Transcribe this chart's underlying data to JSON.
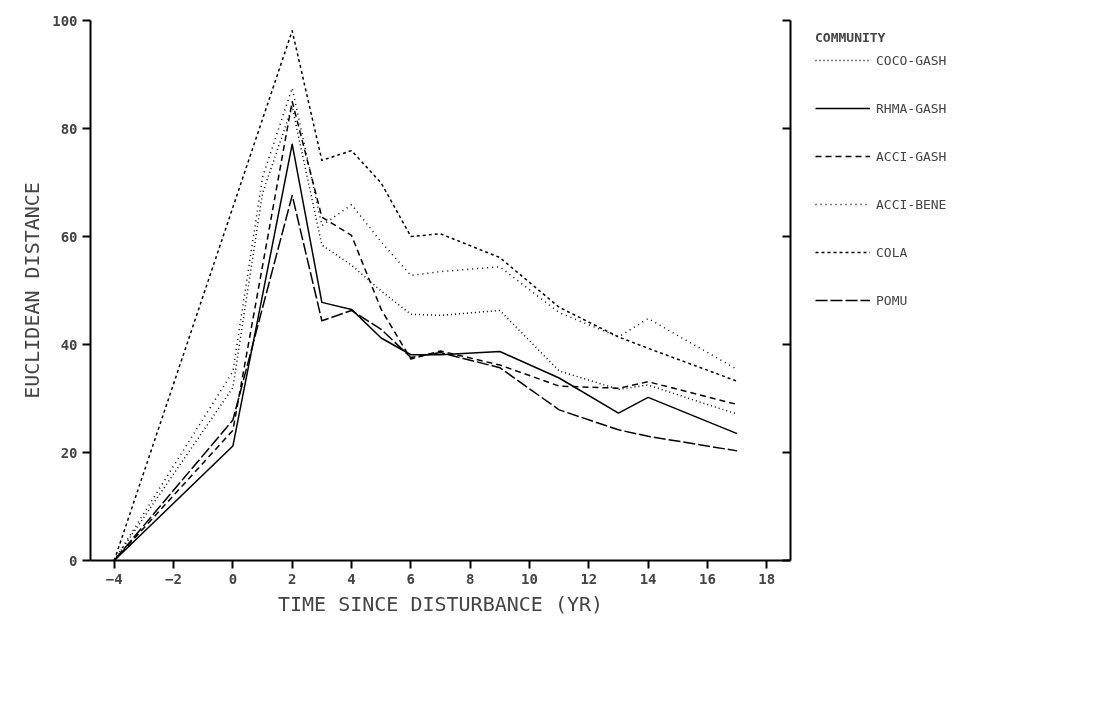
{
  "chart_data": {
    "type": "line",
    "xlabel": "TIME SINCE DISTURBANCE (YR)",
    "ylabel": "EUCLIDEAN DISTANCE",
    "legend_title": "COMMUNITY",
    "xlim": [
      -4.8,
      18.8
    ],
    "ylim": [
      0,
      100
    ],
    "xticks": [
      -4,
      -2,
      0,
      2,
      4,
      6,
      8,
      10,
      12,
      14,
      16,
      18
    ],
    "yticks": [
      0,
      20,
      40,
      60,
      80,
      100
    ],
    "grid": false,
    "legend": "right",
    "marker": "none",
    "series": [
      {
        "name": "COCO-GASH",
        "color": "#000000",
        "line_style": "dotted",
        "x": [
          -4,
          0,
          1,
          2,
          3,
          4,
          5,
          6,
          7,
          9,
          11,
          13,
          14,
          17
        ],
        "values": [
          0,
          32,
          68,
          84,
          58.4,
          54.7,
          49.9,
          45.6,
          45.4,
          46.3,
          35.1,
          31.7,
          32.5,
          27.1
        ]
      },
      {
        "name": "RHMA-GASH",
        "color": "#000000",
        "line_style": "solid",
        "x": [
          -4,
          0,
          2,
          3,
          4,
          5,
          6,
          7,
          9,
          11,
          13,
          14,
          17
        ],
        "values": [
          0,
          21.2,
          77.1,
          47.8,
          46.5,
          41.2,
          38.1,
          38.1,
          38.7,
          33.8,
          27.3,
          30.2,
          23.5
        ]
      },
      {
        "name": "ACCI-GASH",
        "color": "#000000",
        "line_style": "dashed",
        "x": [
          -4,
          0,
          2,
          3,
          4,
          5,
          6,
          7,
          9,
          11,
          13,
          14,
          17
        ],
        "values": [
          0,
          24.1,
          85,
          63.6,
          60.2,
          46.5,
          37.3,
          38.8,
          36.2,
          32.3,
          31.9,
          33.1,
          28.9
        ]
      },
      {
        "name": "ACCI-BENE",
        "color": "#000000",
        "line_style": "dotted",
        "x": [
          -4,
          0,
          1,
          2,
          3,
          4,
          5,
          6,
          7,
          9,
          11,
          13,
          14,
          17
        ],
        "values": [
          0,
          35,
          71,
          87.5,
          62,
          65.9,
          59,
          52.8,
          53.5,
          54.4,
          45.9,
          41.4,
          44.8,
          35.4
        ]
      },
      {
        "name": "COLA",
        "color": "#000000",
        "line_style": "dashed",
        "x": [
          -4,
          2,
          3,
          4,
          5,
          6,
          7,
          9,
          11,
          13,
          14,
          17
        ],
        "values": [
          0,
          98.1,
          74.1,
          75.9,
          69.9,
          60,
          60.5,
          56.1,
          46.9,
          41.4,
          39.3,
          33.2
        ]
      },
      {
        "name": "POMU",
        "color": "#000000",
        "line_style": "dashed",
        "x": [
          -4,
          0,
          2,
          3,
          4,
          5,
          6,
          7,
          9,
          11,
          13,
          14,
          17
        ],
        "values": [
          0,
          26,
          67.6,
          44.4,
          46.3,
          42.8,
          37.6,
          38.5,
          35.7,
          27.9,
          24.2,
          23,
          20.3
        ]
      }
    ]
  }
}
